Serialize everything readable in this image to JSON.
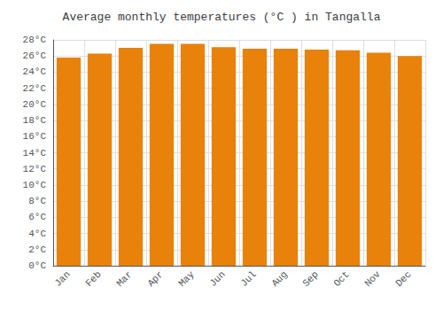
{
  "chart_data": {
    "type": "bar",
    "title": "Average monthly temperatures (°C ) in Tangalla",
    "categories": [
      "Jan",
      "Feb",
      "Mar",
      "Apr",
      "May",
      "Jun",
      "Jul",
      "Aug",
      "Sep",
      "Oct",
      "Nov",
      "Dec"
    ],
    "values": [
      25.8,
      26.3,
      27.0,
      27.5,
      27.5,
      27.1,
      26.9,
      26.9,
      26.8,
      26.7,
      26.4,
      26.0
    ],
    "color": "#E8820A",
    "ylim": [
      0,
      28
    ],
    "yticks": [
      {
        "value": 0,
        "label": "0°C"
      },
      {
        "value": 2,
        "label": "2°C"
      },
      {
        "value": 4,
        "label": "4°C"
      },
      {
        "value": 6,
        "label": "6°C"
      },
      {
        "value": 8,
        "label": "8°C"
      },
      {
        "value": 10,
        "label": "10°C"
      },
      {
        "value": 12,
        "label": "12°C"
      },
      {
        "value": 14,
        "label": "14°C"
      },
      {
        "value": 16,
        "label": "16°C"
      },
      {
        "value": 18,
        "label": "18°C"
      },
      {
        "value": 20,
        "label": "20°C"
      },
      {
        "value": 22,
        "label": "22°C"
      },
      {
        "value": 24,
        "label": "24°C"
      },
      {
        "value": 26,
        "label": "26°C"
      },
      {
        "value": 28,
        "label": "28°C"
      }
    ],
    "grid": true
  }
}
